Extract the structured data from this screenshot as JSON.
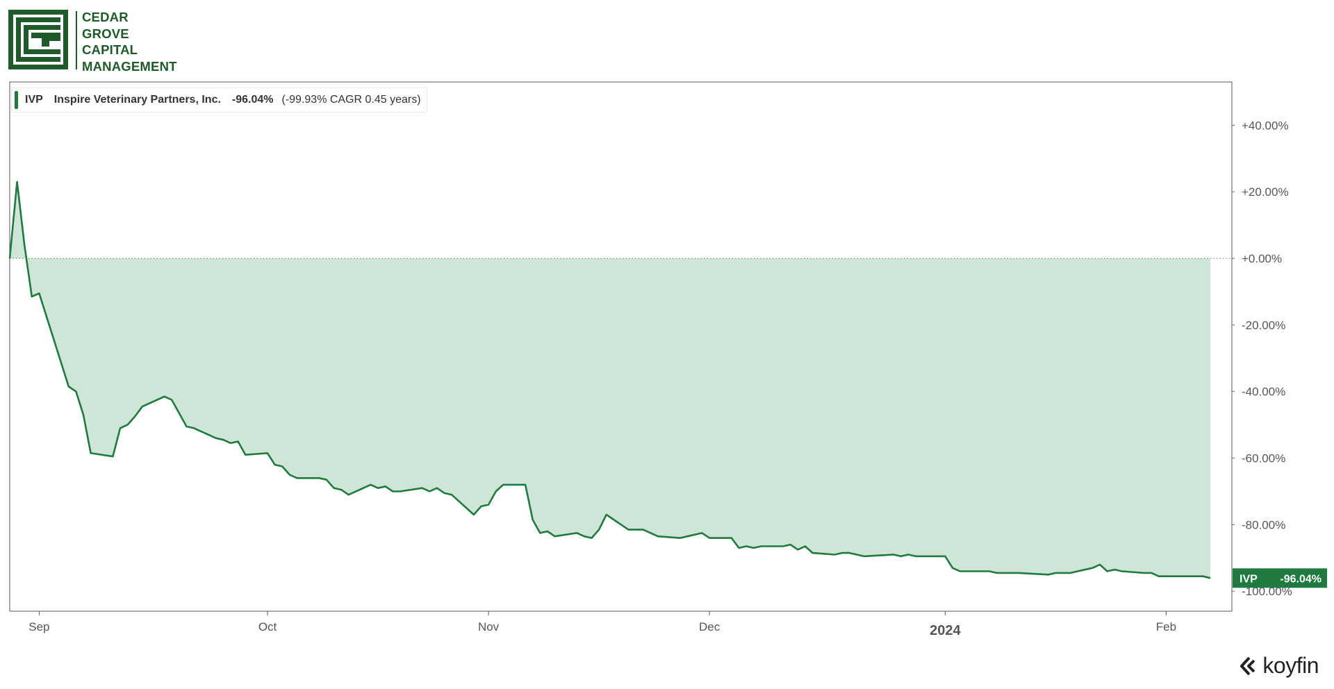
{
  "brand": {
    "logo_lines": [
      "CEDAR",
      "GROVE",
      "CAPITAL",
      "MANAGEMENT"
    ],
    "color": "#1f5a2a"
  },
  "legend": {
    "ticker": "IVP",
    "name": "Inspire Veterinary Partners, Inc.",
    "return": "-96.04%",
    "cagr": "(-99.93% CAGR 0.45 years)",
    "color": "#1e7a3e"
  },
  "badge": {
    "ticker": "IVP",
    "value": "-96.04%"
  },
  "watermark": "koyfin",
  "chart_data": {
    "type": "area",
    "series": [
      {
        "name": "IVP",
        "color": "#1e7a3e",
        "fill": "#cfe5d7",
        "x": [
          "2023-08-28",
          "2023-08-29",
          "2023-08-30",
          "2023-08-31",
          "2023-09-01",
          "2023-09-05",
          "2023-09-06",
          "2023-09-07",
          "2023-09-08",
          "2023-09-11",
          "2023-09-12",
          "2023-09-13",
          "2023-09-14",
          "2023-09-15",
          "2023-09-18",
          "2023-09-19",
          "2023-09-20",
          "2023-09-21",
          "2023-09-22",
          "2023-09-25",
          "2023-09-26",
          "2023-09-27",
          "2023-09-28",
          "2023-09-29",
          "2023-10-02",
          "2023-10-03",
          "2023-10-04",
          "2023-10-05",
          "2023-10-06",
          "2023-10-09",
          "2023-10-10",
          "2023-10-11",
          "2023-10-12",
          "2023-10-13",
          "2023-10-16",
          "2023-10-17",
          "2023-10-18",
          "2023-10-19",
          "2023-10-20",
          "2023-10-23",
          "2023-10-24",
          "2023-10-25",
          "2023-10-26",
          "2023-10-27",
          "2023-10-30",
          "2023-10-31",
          "2023-11-01",
          "2023-11-02",
          "2023-11-03",
          "2023-11-06",
          "2023-11-07",
          "2023-11-08",
          "2023-11-09",
          "2023-11-10",
          "2023-11-13",
          "2023-11-14",
          "2023-11-15",
          "2023-11-16",
          "2023-11-17",
          "2023-11-20",
          "2023-11-21",
          "2023-11-22",
          "2023-11-24",
          "2023-11-27",
          "2023-11-28",
          "2023-11-29",
          "2023-11-30",
          "2023-12-01",
          "2023-12-04",
          "2023-12-05",
          "2023-12-06",
          "2023-12-07",
          "2023-12-08",
          "2023-12-11",
          "2023-12-12",
          "2023-12-13",
          "2023-12-14",
          "2023-12-15",
          "2023-12-18",
          "2023-12-19",
          "2023-12-20",
          "2023-12-21",
          "2023-12-22",
          "2023-12-26",
          "2023-12-27",
          "2023-12-28",
          "2023-12-29",
          "2024-01-02",
          "2024-01-03",
          "2024-01-04",
          "2024-01-05",
          "2024-01-08",
          "2024-01-09",
          "2024-01-10",
          "2024-01-11",
          "2024-01-12",
          "2024-01-16",
          "2024-01-17",
          "2024-01-18",
          "2024-01-19",
          "2024-01-22",
          "2024-01-23",
          "2024-01-24",
          "2024-01-25",
          "2024-01-26",
          "2024-01-29",
          "2024-01-30",
          "2024-01-31",
          "2024-02-01",
          "2024-02-02",
          "2024-02-05",
          "2024-02-06",
          "2024-02-07"
        ],
        "y": [
          0.0,
          23.0,
          4.0,
          -11.5,
          -10.5,
          -38.5,
          -40.0,
          -47.0,
          -58.5,
          -59.5,
          -51.0,
          -50.0,
          -47.5,
          -44.5,
          -41.5,
          -42.5,
          -46.5,
          -50.5,
          -51.0,
          -54.0,
          -54.5,
          -55.5,
          -55.0,
          -59.0,
          -58.5,
          -62.0,
          -62.5,
          -65.0,
          -66.0,
          -66.0,
          -66.5,
          -69.0,
          -69.5,
          -71.0,
          -68.0,
          -69.0,
          -68.5,
          -70.0,
          -70.0,
          -69.0,
          -70.0,
          -69.0,
          -70.5,
          -71.0,
          -77.0,
          -74.5,
          -74.0,
          -70.0,
          -68.0,
          -68.0,
          -78.5,
          -82.5,
          -82.0,
          -83.5,
          -82.5,
          -83.5,
          -84.0,
          -81.5,
          -77.0,
          -81.5,
          -81.5,
          -81.5,
          -83.5,
          -84.0,
          -83.5,
          -83.0,
          -82.5,
          -84.0,
          -84.0,
          -87.0,
          -86.5,
          -87.0,
          -86.5,
          -86.5,
          -86.0,
          -87.5,
          -86.5,
          -88.5,
          -89.0,
          -88.5,
          -88.5,
          -89.0,
          -89.5,
          -89.0,
          -89.5,
          -89.0,
          -89.5,
          -89.5,
          -93.0,
          -94.0,
          -94.0,
          -94.0,
          -94.5,
          -94.5,
          -94.5,
          -94.5,
          -95.0,
          -94.5,
          -94.5,
          -94.5,
          -93.0,
          -92.0,
          -94.0,
          -93.5,
          -94.0,
          -94.5,
          -94.5,
          -95.5,
          -95.5,
          -95.5,
          -95.5,
          -95.5,
          -96.04
        ]
      }
    ],
    "x_ticks": [
      {
        "label": "Sep",
        "date": "2023-09-01"
      },
      {
        "label": "Oct",
        "date": "2023-10-02"
      },
      {
        "label": "Nov",
        "date": "2023-11-01"
      },
      {
        "label": "Dec",
        "date": "2023-12-01"
      },
      {
        "label": "2024",
        "date": "2024-01-02"
      },
      {
        "label": "Feb",
        "date": "2024-02-01"
      }
    ],
    "y_ticks": [
      {
        "label": "+40.00%",
        "value": 40
      },
      {
        "label": "+20.00%",
        "value": 20
      },
      {
        "label": "+0.00%",
        "value": 0
      },
      {
        "label": "-20.00%",
        "value": -20
      },
      {
        "label": "-40.00%",
        "value": -40
      },
      {
        "label": "-60.00%",
        "value": -60
      },
      {
        "label": "-80.00%",
        "value": -80
      },
      {
        "label": "-100.00%",
        "value": -100
      }
    ],
    "ylim": [
      -106,
      53
    ],
    "xlim": [
      "2023-08-28",
      "2024-02-07"
    ],
    "y_axis_side": "right",
    "zero_line": "dotted",
    "grid": false,
    "legend_position": "top-left"
  }
}
